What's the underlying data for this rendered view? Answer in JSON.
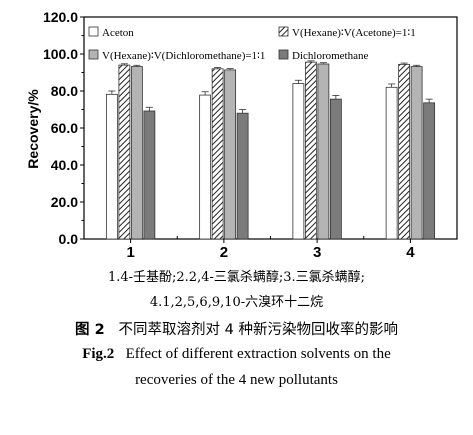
{
  "chart_data": {
    "type": "bar",
    "categories": [
      "1",
      "2",
      "3",
      "4"
    ],
    "ylabel": "Recovery/%",
    "xlabel": "",
    "ylim": [
      0,
      120
    ],
    "yticks": [
      "0.0",
      "20.0",
      "40.0",
      "60.0",
      "80.0",
      "100.0",
      "120.0"
    ],
    "legend_position": "top",
    "series": [
      {
        "name": "Aceton",
        "values": [
          78.2,
          77.8,
          84.0,
          82.0
        ],
        "errors": [
          1.8,
          1.8,
          1.8,
          1.8
        ],
        "fill": "#ffffff",
        "pattern": "none"
      },
      {
        "name": "V(Hexane)∶V(Acetone)=1∶1",
        "values": [
          94.0,
          92.0,
          95.6,
          94.4
        ],
        "errors": [
          0.7,
          0.7,
          0.7,
          0.7
        ],
        "fill": "#ffffff",
        "pattern": "hatch"
      },
      {
        "name": "V(Hexane)∶V(Dichloromethane)=1∶1",
        "values": [
          93.2,
          91.4,
          94.6,
          93.2
        ],
        "errors": [
          0.7,
          0.7,
          0.7,
          0.7
        ],
        "fill": "#b4b4b4",
        "pattern": "none"
      },
      {
        "name": "Dichloromethane",
        "values": [
          69.2,
          68.0,
          75.6,
          73.6
        ],
        "errors": [
          2.0,
          2.0,
          2.0,
          2.0
        ],
        "fill": "#7b7b7b",
        "pattern": "none"
      }
    ]
  },
  "notes": {
    "line1": "1.4-壬基酚;2.2,4-三氯杀螨醇;3.三氯杀螨醇;",
    "line2": "4.1,2,5,6,9,10-六溴环十二烷"
  },
  "caption_cn": {
    "label": "图 2",
    "text": "不同萃取溶剂对 4 种新污染物回收率的影响"
  },
  "caption_en": {
    "label": "Fig.2",
    "text": "Effect of different extraction solvents on the",
    "text2": "recoveries of the 4 new pollutants"
  }
}
